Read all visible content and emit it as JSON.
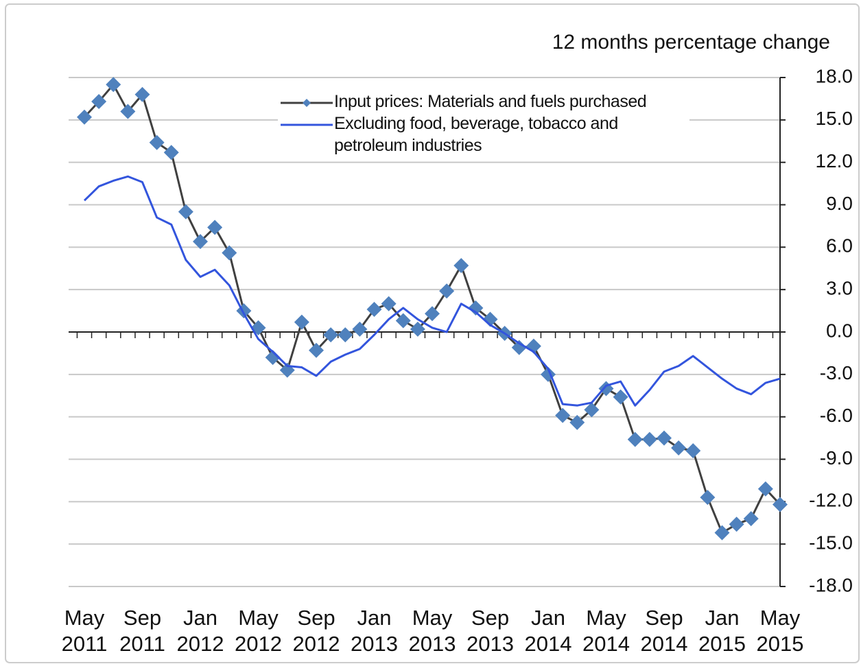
{
  "chart_data": {
    "type": "line",
    "y_axis_label": "12 months percentage change",
    "categories": [
      "May 2011",
      null,
      null,
      null,
      "Sep 2011",
      null,
      null,
      null,
      "Jan 2012",
      null,
      null,
      null,
      "May 2012",
      null,
      null,
      null,
      "Sep 2012",
      null,
      null,
      null,
      "Jan 2013",
      null,
      null,
      null,
      "May 2013",
      null,
      null,
      null,
      "Sep 2013",
      null,
      null,
      null,
      "Jan 2014",
      null,
      null,
      null,
      "May 2014",
      null,
      null,
      null,
      "Sep 2014",
      null,
      null,
      null,
      "Jan 2015",
      null,
      null,
      null,
      "May 2015"
    ],
    "series": [
      {
        "name": "Input prices: Materials and fuels purchased",
        "color": "#404040",
        "marker_color": "#4f81bd",
        "values": [
          15.2,
          16.3,
          17.5,
          15.6,
          16.8,
          13.4,
          12.7,
          8.5,
          6.4,
          7.4,
          5.6,
          1.5,
          0.3,
          -1.8,
          -2.7,
          0.7,
          -1.3,
          -0.2,
          -0.2,
          0.2,
          1.6,
          2.0,
          0.8,
          0.2,
          1.3,
          2.9,
          4.7,
          1.7,
          0.9,
          -0.1,
          -1.1,
          -1.0,
          -3.0,
          -5.9,
          -6.4,
          -5.5,
          -4.0,
          -4.6,
          -7.6,
          -7.6,
          -7.5,
          -8.2,
          -8.4,
          -11.7,
          -14.2,
          -13.6,
          -13.2,
          -11.1,
          -12.2
        ]
      },
      {
        "name": "Excluding food, beverage, tobacco and petroleum industries",
        "color": "#3355dd",
        "values": [
          9.3,
          10.3,
          10.7,
          11.0,
          10.6,
          8.1,
          7.6,
          5.1,
          3.9,
          4.4,
          3.3,
          1.3,
          -0.5,
          -1.4,
          -2.4,
          -2.5,
          -3.1,
          -2.1,
          -1.6,
          -1.2,
          -0.2,
          0.9,
          1.7,
          0.9,
          0.3,
          0.0,
          2.0,
          1.4,
          0.5,
          -0.1,
          -0.8,
          -1.4,
          -2.6,
          -5.1,
          -5.2,
          -5.0,
          -3.8,
          -3.5,
          -5.2,
          -4.1,
          -2.8,
          -2.4,
          -1.7,
          -2.5,
          -3.3,
          -4.0,
          -4.4,
          -3.6,
          -3.3
        ]
      }
    ],
    "ylim": [
      -18,
      18
    ],
    "yticks": [
      {
        "value": 18,
        "label": "18.0"
      },
      {
        "value": 15,
        "label": "15.0"
      },
      {
        "value": 12,
        "label": "12.0"
      },
      {
        "value": 9,
        "label": "9.0"
      },
      {
        "value": 6,
        "label": "6.0"
      },
      {
        "value": 3,
        "label": "3.0"
      },
      {
        "value": 0,
        "label": "0.0"
      },
      {
        "value": -3,
        "label": "-3.0"
      },
      {
        "value": -6,
        "label": "-6.0"
      },
      {
        "value": -9,
        "label": "-9.0"
      },
      {
        "value": -12,
        "label": "-12.0"
      },
      {
        "value": -15,
        "label": "-15.0"
      },
      {
        "value": -18,
        "label": "-18.0"
      }
    ],
    "grid": true,
    "legend": "top"
  }
}
